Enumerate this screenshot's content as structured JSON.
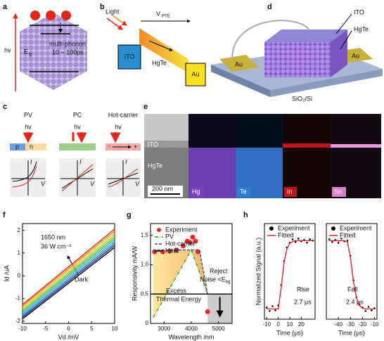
{
  "letters": [
    "a",
    "b",
    "c",
    "d",
    "e",
    "f",
    "g",
    "h"
  ],
  "a": {
    "hv": "hv",
    "e": "E",
    "e_sub": "g",
    "line1": "multi-phonon",
    "line2": "10 ~ 100ps"
  },
  "b": {
    "light": "Light",
    "v": "V",
    "v_sub": "PTE",
    "ito": "ITO",
    "hgte": "HgTe",
    "au": "Au"
  },
  "c": {
    "modes": [
      "PV",
      "PC",
      "Hot-carrier"
    ],
    "hv": [
      "hv",
      "hv",
      "hv"
    ],
    "p": "p",
    "n": "n",
    "minus": "-",
    "plus": "+",
    "i": [
      "I",
      "I",
      "I"
    ],
    "v": [
      "V",
      "V",
      "V"
    ]
  },
  "d": {
    "ito": "ITO",
    "hgte": "HgTe",
    "au": [
      "Au",
      "Au"
    ],
    "substrate": "SiO₂/Si"
  },
  "e": {
    "ito": "ITO",
    "hgte": "HgTe",
    "scale": "200 nm",
    "elements": [
      "Hg",
      "Te",
      "In",
      "Sn"
    ]
  },
  "chart_data": [
    {
      "type": "line",
      "x_label": "Vd /mV",
      "y_label": "Id /uA",
      "x": [
        -10,
        10
      ],
      "xlim": [
        -10,
        10
      ],
      "xticks": [
        -10,
        -5,
        0,
        5,
        10
      ],
      "ylim": [
        -2.1,
        2.3
      ],
      "yticks": [
        -2,
        -1,
        0,
        1,
        2
      ],
      "annotations": [
        "1650 nm",
        "36 W cm⁻²",
        "Dark"
      ],
      "series": [
        {
          "color": "#000000",
          "values": [
            -1.9,
            1.25
          ]
        },
        {
          "color": "#1b1f8a",
          "values": [
            -1.83,
            1.34
          ]
        },
        {
          "color": "#2c5fd6",
          "values": [
            -1.76,
            1.43
          ]
        },
        {
          "color": "#27b3d6",
          "values": [
            -1.69,
            1.52
          ]
        },
        {
          "color": "#2bb38a",
          "values": [
            -1.62,
            1.61
          ]
        },
        {
          "color": "#4fbf3a",
          "values": [
            -1.55,
            1.7
          ]
        },
        {
          "color": "#a8c93a",
          "values": [
            -1.48,
            1.79
          ]
        },
        {
          "color": "#e8d21f",
          "values": [
            -1.41,
            1.88
          ]
        },
        {
          "color": "#f08a1c",
          "values": [
            -1.34,
            1.97
          ]
        },
        {
          "color": "#e3261c",
          "values": [
            -1.27,
            2.06
          ]
        }
      ]
    },
    {
      "type": "line",
      "x_label": "Wavelength /nm",
      "y_label": "Responsivity mA/W",
      "xlim": [
        2500,
        5500
      ],
      "xticks": [
        3000,
        4000,
        5000
      ],
      "ylim": [
        0,
        1.7
      ],
      "yticks": [
        0,
        0.5,
        {
          "value": 1,
          "label": "1.0"
        },
        1.5
      ],
      "legend": "upper left",
      "annotations": [
        "Reject",
        "Noise <E",
        "bg",
        "Excess",
        "Thermal Energy"
      ],
      "series": [
        {
          "name": "Experiment",
          "color": "#e8262a",
          "marker": true,
          "x": [
            2650,
            2950,
            3200,
            3450,
            3700,
            3850,
            3950,
            4050,
            4150,
            4250,
            4600
          ],
          "values": [
            1.22,
            1.22,
            1.23,
            1.25,
            1.32,
            1.4,
            1.38,
            1.47,
            1.4,
            1.22,
            0.2
          ]
        },
        {
          "name": "PV",
          "color": "#2ca02c",
          "dash": "dashdot",
          "x": [
            2600,
            4000,
            4600
          ],
          "values": [
            0.1,
            1.25,
            0.5
          ]
        },
        {
          "name": "Hot-carrier",
          "color": "#1f4e9c",
          "dash": "dash",
          "x": [
            2600,
            4300,
            4600
          ],
          "values": [
            1.25,
            1.25,
            0.5
          ]
        },
        {
          "name": "Heat",
          "color": "#000000",
          "x": [
            2500,
            5500
          ],
          "values": [
            0.5,
            0.5
          ]
        }
      ]
    },
    {
      "type": "line",
      "x_label": "Time (μs)",
      "y_label": "Normalized Signal (a.u.)",
      "xlim": [
        -12,
        32
      ],
      "xticks": [
        -10,
        0,
        10,
        20
      ],
      "ylim": [
        -0.15,
        1.25
      ],
      "legend": "upper left",
      "annotations": [
        "Rise",
        "2.7 μs"
      ],
      "x": [
        -10,
        -7.5,
        -5,
        -2.5,
        0,
        2.5,
        5,
        7.5,
        10,
        12.5,
        15,
        17.5,
        20,
        22.5,
        25,
        27.5,
        30
      ],
      "series": [
        {
          "name": "Experiment",
          "color": "#000000",
          "marker": true,
          "values": [
            0.02,
            -0.03,
            0.04,
            -0.02,
            0.05,
            0.35,
            0.7,
            0.9,
            0.97,
            1.02,
            0.98,
            1.03,
            0.99,
            1.01,
            0.97,
            1.02,
            1.0
          ]
        },
        {
          "name": "Fitted",
          "color": "#e8262a",
          "values": [
            0,
            0,
            0,
            0,
            0,
            0.3,
            0.68,
            0.88,
            0.96,
            0.99,
            1,
            1,
            1,
            1,
            1,
            1,
            1
          ]
        }
      ]
    },
    {
      "type": "line",
      "x_label": "Time (μs)",
      "xlim": [
        -50,
        -8
      ],
      "xticks": [
        -40,
        -30,
        -20,
        -10
      ],
      "ylim": [
        -0.15,
        1.25
      ],
      "legend": "upper left",
      "annotations": [
        "Fall",
        "2.4 μs"
      ],
      "x": [
        -47.5,
        -45,
        -42.5,
        -40,
        -37.5,
        -35,
        -32.5,
        -30,
        -27.5,
        -25,
        -22.5,
        -20,
        -17.5,
        -15,
        -12.5,
        -10
      ],
      "series": [
        {
          "name": "Experiment",
          "color": "#000000",
          "marker": true,
          "values": [
            1.02,
            0.98,
            1.01,
            0.97,
            1.03,
            0.99,
            1.0,
            0.78,
            0.42,
            0.17,
            0.06,
            0.02,
            -0.03,
            0.03,
            -0.02,
            0.01
          ]
        },
        {
          "name": "Fitted",
          "color": "#e8262a",
          "values": [
            1,
            1,
            1,
            1,
            1,
            1,
            0.98,
            0.75,
            0.4,
            0.16,
            0.05,
            0.01,
            0,
            0,
            0,
            0
          ]
        }
      ]
    }
  ]
}
